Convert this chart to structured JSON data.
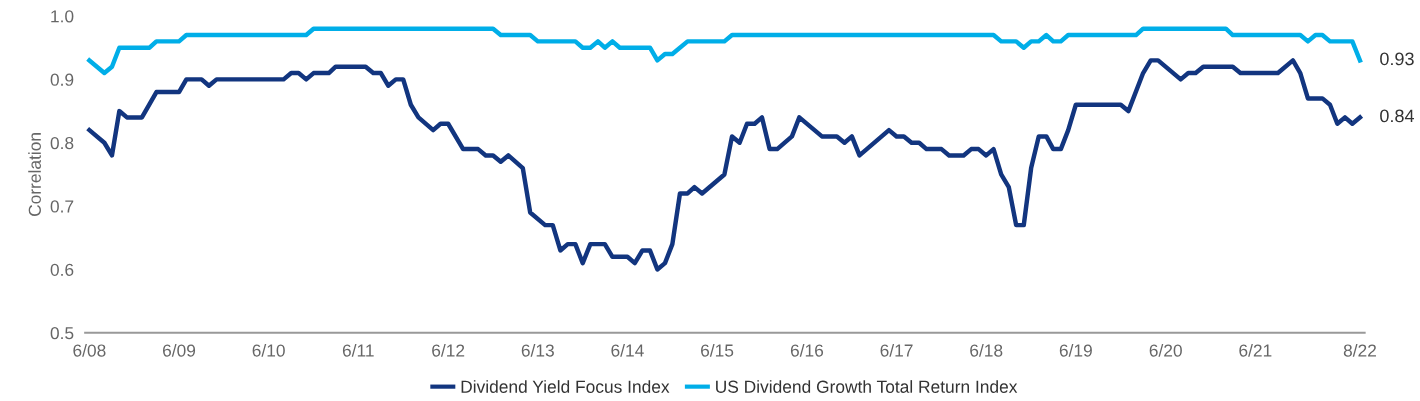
{
  "chart_data": {
    "type": "line",
    "ylabel": "Correlation",
    "legend": "bottom",
    "grid": false,
    "marker": "none",
    "line_style": "solid",
    "ylim": [
      0.5,
      1.0
    ],
    "yticks": [
      {
        "value": 0.5,
        "label": "0.5"
      },
      {
        "value": 0.6,
        "label": "0.6"
      },
      {
        "value": 0.7,
        "label": "0.7"
      },
      {
        "value": 0.8,
        "label": "0.8"
      },
      {
        "value": 0.9,
        "label": "0.9"
      },
      {
        "value": 1.0,
        "label": "1.0"
      }
    ],
    "xlim": [
      "2008-05-15",
      "2022-08-20"
    ],
    "xticks": [
      {
        "value": "2008-06",
        "label": "6/08"
      },
      {
        "value": "2009-06",
        "label": "6/09"
      },
      {
        "value": "2010-06",
        "label": "6/10"
      },
      {
        "value": "2011-06",
        "label": "6/11"
      },
      {
        "value": "2012-06",
        "label": "6/12"
      },
      {
        "value": "2013-06",
        "label": "6/13"
      },
      {
        "value": "2014-06",
        "label": "6/14"
      },
      {
        "value": "2015-06",
        "label": "6/15"
      },
      {
        "value": "2016-06",
        "label": "6/16"
      },
      {
        "value": "2017-06",
        "label": "6/17"
      },
      {
        "value": "2018-06",
        "label": "6/18"
      },
      {
        "value": "2019-06",
        "label": "6/19"
      },
      {
        "value": "2020-06",
        "label": "6/20"
      },
      {
        "value": "2021-06",
        "label": "6/21"
      },
      {
        "value": "2022-08",
        "label": "8/22"
      }
    ],
    "annotations": [
      {
        "text": "0.93",
        "x": "2022-08",
        "y": 0.93
      },
      {
        "text": "0.84",
        "x": "2022-08",
        "y": 0.84
      }
    ],
    "series": [
      {
        "name": "Dividend Yield Focus Index",
        "color": "#12357f",
        "x": [
          "2008-06",
          "2008-08",
          "2008-09",
          "2008-10",
          "2008-11",
          "2009-01",
          "2009-03",
          "2009-06",
          "2009-07",
          "2009-09",
          "2009-10",
          "2009-11",
          "2010-08",
          "2010-09",
          "2010-10",
          "2010-11",
          "2010-12",
          "2011-02",
          "2011-03",
          "2011-07",
          "2011-08",
          "2011-09",
          "2011-10",
          "2011-11",
          "2011-12",
          "2012-01",
          "2012-02",
          "2012-04",
          "2012-05",
          "2012-06",
          "2012-08",
          "2012-10",
          "2012-11",
          "2012-12",
          "2013-01",
          "2013-02",
          "2013-04",
          "2013-05",
          "2013-07",
          "2013-08",
          "2013-09",
          "2013-10",
          "2013-11",
          "2013-12",
          "2014-01",
          "2014-03",
          "2014-04",
          "2014-06",
          "2014-07",
          "2014-08",
          "2014-09",
          "2014-10",
          "2014-11",
          "2014-12",
          "2015-01",
          "2015-02",
          "2015-03",
          "2015-04",
          "2015-07",
          "2015-08",
          "2015-09",
          "2015-10",
          "2015-11",
          "2015-12",
          "2016-01",
          "2016-02",
          "2016-04",
          "2016-05",
          "2016-08",
          "2016-10",
          "2016-11",
          "2016-12",
          "2017-01",
          "2017-05",
          "2017-06",
          "2017-07",
          "2017-08",
          "2017-09",
          "2017-10",
          "2017-12",
          "2018-01",
          "2018-03",
          "2018-04",
          "2018-05",
          "2018-06",
          "2018-07",
          "2018-08",
          "2018-09",
          "2018-10",
          "2018-11",
          "2018-12",
          "2019-01",
          "2019-02",
          "2019-03",
          "2019-04",
          "2019-05",
          "2019-06",
          "2019-12",
          "2020-01",
          "2020-03",
          "2020-04",
          "2020-05",
          "2020-08",
          "2020-09",
          "2020-10",
          "2020-11",
          "2021-03",
          "2021-04",
          "2021-09",
          "2021-11",
          "2021-12",
          "2022-01",
          "2022-03",
          "2022-04",
          "2022-05",
          "2022-06",
          "2022-07",
          "2022-08"
        ],
        "values": [
          0.82,
          0.8,
          0.78,
          0.85,
          0.84,
          0.84,
          0.88,
          0.88,
          0.9,
          0.9,
          0.89,
          0.9,
          0.9,
          0.91,
          0.91,
          0.9,
          0.91,
          0.91,
          0.92,
          0.92,
          0.91,
          0.91,
          0.89,
          0.9,
          0.9,
          0.86,
          0.84,
          0.82,
          0.83,
          0.83,
          0.79,
          0.79,
          0.78,
          0.78,
          0.77,
          0.78,
          0.76,
          0.69,
          0.67,
          0.67,
          0.63,
          0.64,
          0.64,
          0.61,
          0.64,
          0.64,
          0.62,
          0.62,
          0.61,
          0.63,
          0.63,
          0.6,
          0.61,
          0.64,
          0.72,
          0.72,
          0.73,
          0.72,
          0.75,
          0.81,
          0.8,
          0.83,
          0.83,
          0.84,
          0.79,
          0.79,
          0.81,
          0.84,
          0.81,
          0.81,
          0.8,
          0.81,
          0.78,
          0.82,
          0.81,
          0.81,
          0.8,
          0.8,
          0.79,
          0.79,
          0.78,
          0.78,
          0.79,
          0.79,
          0.78,
          0.79,
          0.75,
          0.73,
          0.67,
          0.67,
          0.76,
          0.81,
          0.81,
          0.79,
          0.79,
          0.82,
          0.86,
          0.86,
          0.85,
          0.91,
          0.93,
          0.93,
          0.9,
          0.91,
          0.91,
          0.92,
          0.92,
          0.91,
          0.91,
          0.93,
          0.91,
          0.87,
          0.87,
          0.86,
          0.83,
          0.84,
          0.83,
          0.84
        ]
      },
      {
        "name": "US Dividend Growth Total Return Index",
        "color": "#00aee8",
        "x": [
          "2008-06",
          "2008-08",
          "2008-09",
          "2008-10",
          "2009-02",
          "2009-03",
          "2009-06",
          "2009-07",
          "2010-11",
          "2010-12",
          "2012-12",
          "2013-01",
          "2013-05",
          "2013-06",
          "2013-11",
          "2013-12",
          "2014-01",
          "2014-02",
          "2014-03",
          "2014-04",
          "2014-05",
          "2014-09",
          "2014-10",
          "2014-11",
          "2014-12",
          "2015-02",
          "2015-07",
          "2015-08",
          "2018-07",
          "2018-08",
          "2018-10",
          "2018-11",
          "2018-12",
          "2019-01",
          "2019-02",
          "2019-03",
          "2019-04",
          "2019-05",
          "2020-02",
          "2020-03",
          "2021-02",
          "2021-03",
          "2021-12",
          "2022-01",
          "2022-02",
          "2022-03",
          "2022-04",
          "2022-07",
          "2022-08"
        ],
        "values": [
          0.93,
          0.91,
          0.92,
          0.95,
          0.95,
          0.96,
          0.96,
          0.97,
          0.97,
          0.98,
          0.98,
          0.97,
          0.97,
          0.96,
          0.96,
          0.95,
          0.95,
          0.96,
          0.95,
          0.96,
          0.95,
          0.95,
          0.93,
          0.94,
          0.94,
          0.96,
          0.96,
          0.97,
          0.97,
          0.96,
          0.96,
          0.95,
          0.96,
          0.96,
          0.97,
          0.96,
          0.96,
          0.97,
          0.97,
          0.98,
          0.98,
          0.97,
          0.97,
          0.96,
          0.97,
          0.97,
          0.96,
          0.96,
          0.93
        ]
      }
    ]
  }
}
